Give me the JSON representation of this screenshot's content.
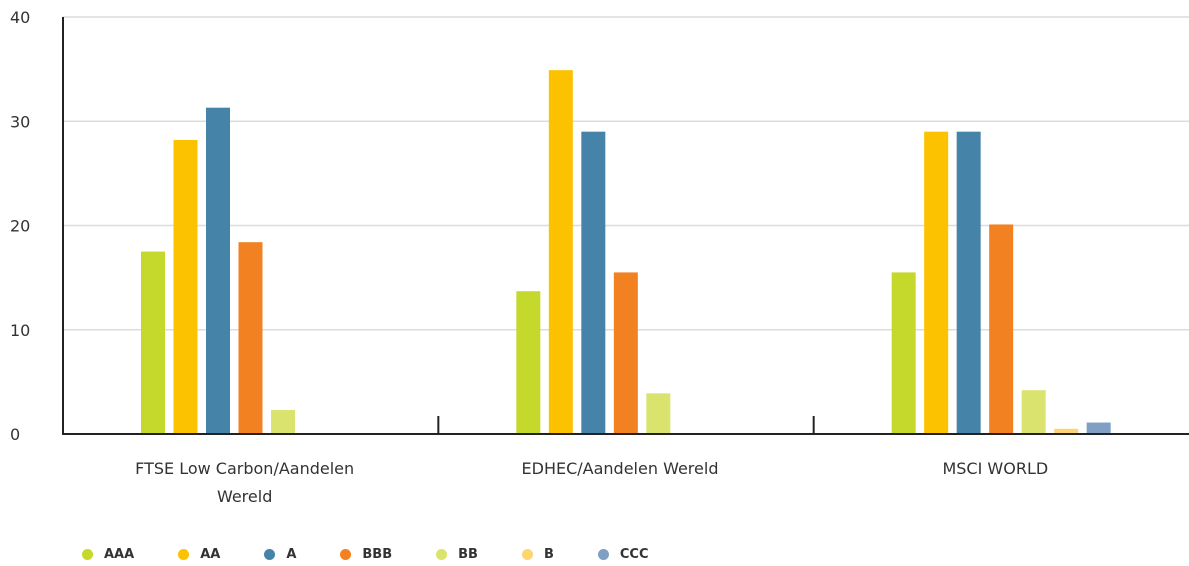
{
  "chart_data": {
    "type": "bar",
    "categories": [
      [
        "FTSE Low Carbon/Aandelen",
        "Wereld"
      ],
      [
        "EDHEC/Aandelen Wereld"
      ],
      [
        "MSCI WORLD"
      ]
    ],
    "series": [
      {
        "name": "AAA",
        "color": "#c5d92d",
        "values": [
          17.5,
          13.7,
          15.5
        ]
      },
      {
        "name": "AA",
        "color": "#fcc200",
        "values": [
          28.2,
          34.9,
          29.0
        ]
      },
      {
        "name": "A",
        "color": "#4584a8",
        "values": [
          31.3,
          29.0,
          29.0
        ]
      },
      {
        "name": "BBB",
        "color": "#f28122",
        "values": [
          18.4,
          15.5,
          20.1
        ]
      },
      {
        "name": "BB",
        "color": "#d9e36d",
        "values": [
          2.3,
          3.9,
          4.2
        ]
      },
      {
        "name": "B",
        "color": "#fcd672",
        "values": [
          0.0,
          0.0,
          0.5
        ]
      },
      {
        "name": "CCC",
        "color": "#7f9fc4",
        "values": [
          0.0,
          0.0,
          1.1
        ]
      }
    ],
    "yticks": [
      0,
      10,
      20,
      30,
      40
    ],
    "ylim": [
      0,
      40
    ],
    "grid": true,
    "legend_position": "bottom-left"
  }
}
